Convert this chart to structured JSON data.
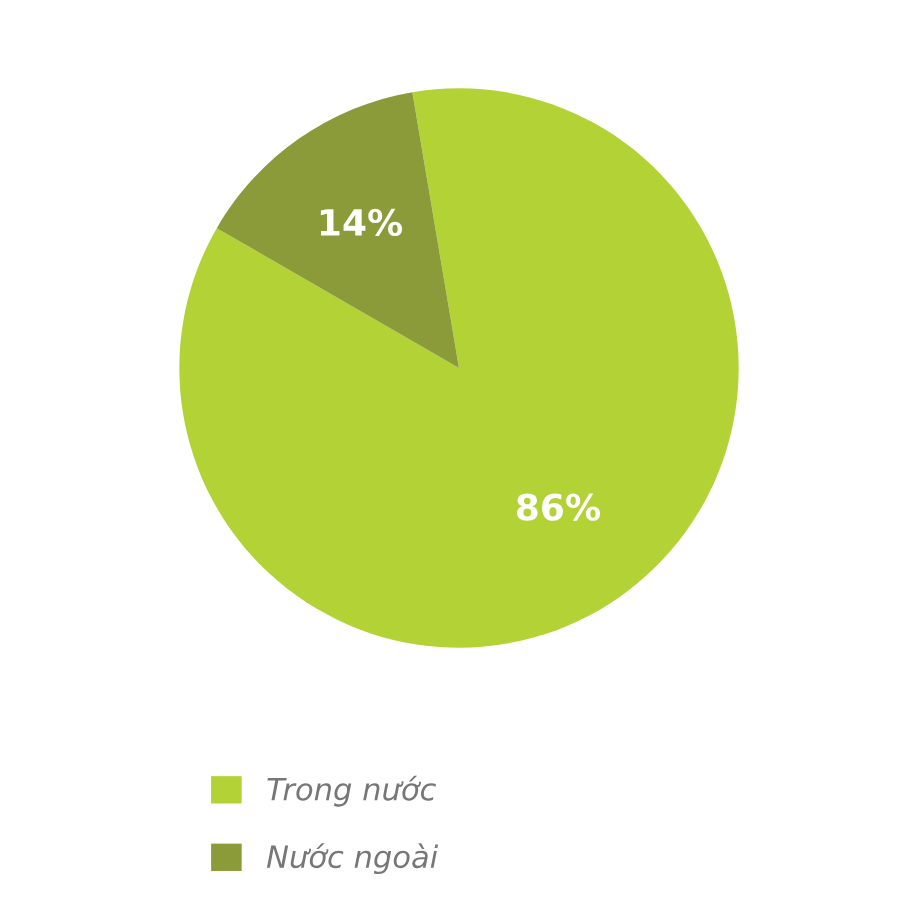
{
  "chart_data": {
    "type": "pie",
    "categories": [
      "Trong nước",
      "Nước ngoài"
    ],
    "values": [
      86,
      14
    ],
    "colors": [
      "#b2d235",
      "#8c9b3a"
    ],
    "value_labels": [
      "86%",
      "14%"
    ],
    "legend": "bottom left"
  }
}
